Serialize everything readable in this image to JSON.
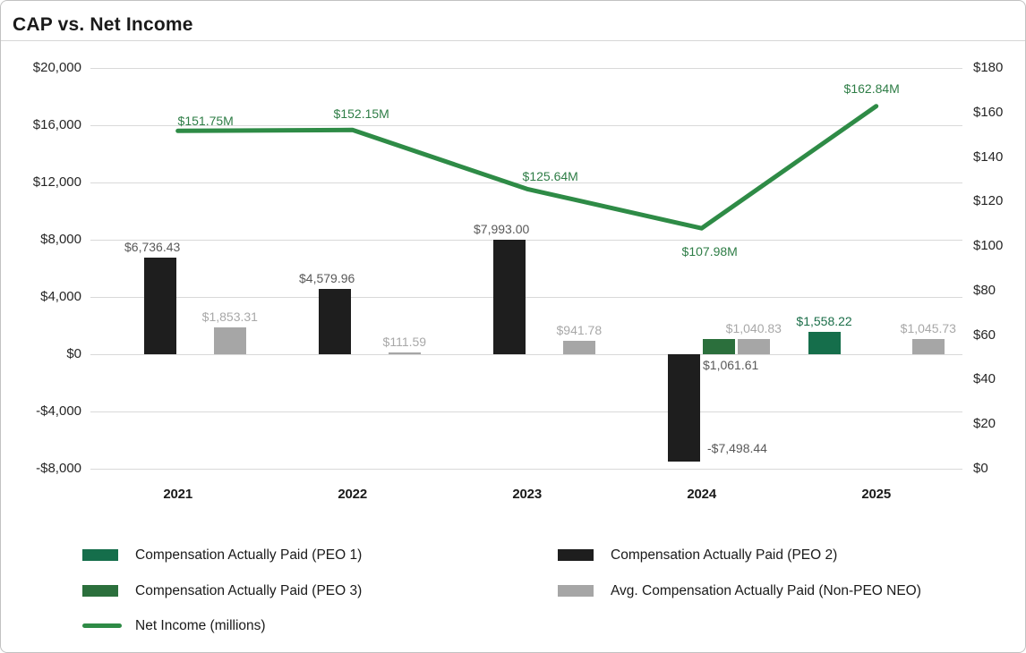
{
  "title": "CAP vs. Net Income",
  "chart_data": {
    "type": "combo_bar_line",
    "title": "CAP vs. Net Income",
    "categories": [
      "2021",
      "2022",
      "2023",
      "2024",
      "2025"
    ],
    "series": [
      {
        "name": "Compensation Actually Paid (PEO 1)",
        "type": "bar",
        "axis": "left",
        "color": "#156e4b",
        "label_color": "#1b6e49",
        "values": [
          null,
          null,
          null,
          null,
          1558.22
        ],
        "labels": [
          null,
          null,
          null,
          null,
          "$1,558.22"
        ]
      },
      {
        "name": "Compensation Actually Paid (PEO 2)",
        "type": "bar",
        "axis": "left",
        "color": "#1e1e1e",
        "label_color": "#595959",
        "values": [
          6736.43,
          4579.96,
          7993.0,
          -7498.44,
          null
        ],
        "labels": [
          "$6,736.43",
          "$4,579.96",
          "$7,993.00",
          "-$7,498.44",
          null
        ]
      },
      {
        "name": "Compensation Actually Paid (PEO 3)",
        "type": "bar",
        "axis": "left",
        "color": "#2b6f3c",
        "label_color": "#595959",
        "values": [
          null,
          null,
          null,
          1061.61,
          null
        ],
        "labels": [
          null,
          null,
          null,
          "$1,061.61",
          null
        ]
      },
      {
        "name": "Avg. Compensation Actually Paid (Non-PEO NEO)",
        "type": "bar",
        "axis": "left",
        "color": "#a6a6a6",
        "label_color": "#a8a8a8",
        "values": [
          1853.31,
          111.59,
          941.78,
          1040.83,
          1045.73
        ],
        "labels": [
          "$1,853.31",
          "$111.59",
          "$941.78",
          "$1,040.83",
          "$1,045.73"
        ]
      },
      {
        "name": "Net Income (millions)",
        "type": "line",
        "axis": "right",
        "color": "#2e8b46",
        "label_color": "#2e7d46",
        "values": [
          151.75,
          152.15,
          125.64,
          107.98,
          162.84
        ],
        "labels": [
          "$151.75M",
          "$152.15M",
          "$125.64M",
          "$107.98M",
          "$162.84M"
        ]
      }
    ],
    "left_axis": {
      "min": -8000,
      "max": 20000,
      "tick_values": [
        20000,
        16000,
        12000,
        8000,
        4000,
        0,
        -4000,
        -8000
      ],
      "tick_labels": [
        "$20,000",
        "$16,000",
        "$12,000",
        "$8,000",
        "$4,000",
        "$0",
        "-$4,000",
        "-$8,000"
      ]
    },
    "right_axis": {
      "min": 0,
      "max": 180,
      "tick_values": [
        180,
        160,
        140,
        120,
        100,
        80,
        60,
        40,
        20,
        0
      ],
      "tick_labels": [
        "$180",
        "$160",
        "$140",
        "$120",
        "$100",
        "$80",
        "$60",
        "$40",
        "$20",
        "$0"
      ]
    },
    "grid": "horizontal",
    "legend_position": "bottom",
    "legend_columns": [
      [
        0,
        2,
        4
      ],
      [
        1,
        3
      ]
    ]
  }
}
